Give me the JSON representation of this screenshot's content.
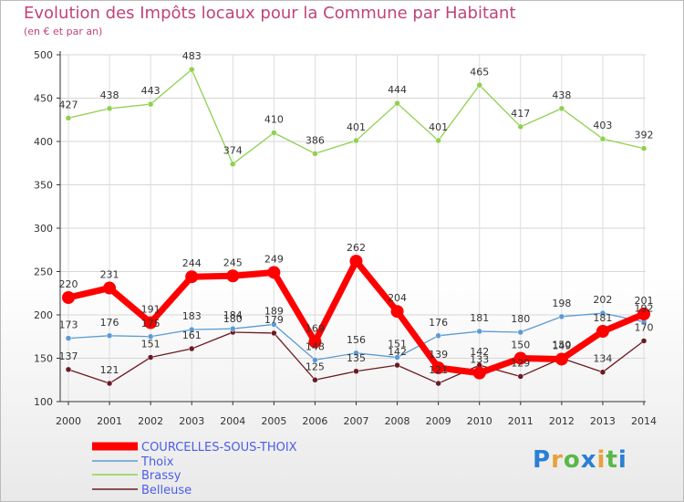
{
  "title": "Evolution des Impôts locaux pour la Commune par Habitant",
  "subtitle": "(en € et par an)",
  "logo_text": "Proxiti",
  "chart_data": {
    "type": "line",
    "title": "Evolution des Impôts locaux pour la Commune par Habitant",
    "subtitle": "(en € et par an)",
    "xlabel": "",
    "ylabel": "",
    "ylim": [
      100,
      500
    ],
    "yticks": [
      100,
      150,
      200,
      250,
      300,
      350,
      400,
      450,
      500
    ],
    "categories": [
      "2000",
      "2001",
      "2002",
      "2003",
      "2004",
      "2005",
      "2006",
      "2007",
      "2008",
      "2009",
      "2010",
      "2011",
      "2012",
      "2013",
      "2014"
    ],
    "legend_position": "bottom-left",
    "series": [
      {
        "name": "COURCELLES-SOUS-THOIX",
        "color": "#ff0000",
        "legend_color": "#4b5de6",
        "values": [
          220,
          231,
          191,
          244,
          245,
          249,
          169,
          262,
          204,
          139,
          133,
          150,
          149,
          181,
          201
        ],
        "labels": [
          "220",
          "231",
          "191",
          "244",
          "245",
          "249",
          "169",
          "262",
          "204",
          "139",
          "133",
          "150",
          "149",
          "181",
          "201"
        ]
      },
      {
        "name": "Thoix",
        "color": "#5b9bd5",
        "legend_color": "#4b5de6",
        "values": [
          173,
          176,
          175,
          183,
          184,
          189,
          148,
          156,
          151,
          176,
          181,
          180,
          198,
          202,
          192
        ],
        "labels": [
          "173",
          "176",
          "175",
          "183",
          "184",
          "189",
          "148",
          "156",
          "151",
          "176",
          "181",
          "180",
          "198",
          "202",
          "192"
        ]
      },
      {
        "name": "Brassy",
        "color": "#8fd14f",
        "legend_color": "#4b5de6",
        "values": [
          427,
          438,
          443,
          483,
          374,
          410,
          386,
          401,
          444,
          401,
          465,
          417,
          438,
          403,
          392
        ],
        "labels": [
          "427",
          "438",
          "443",
          "483",
          "374",
          "410",
          "386",
          "401",
          "444",
          "401",
          "465",
          "417",
          "438",
          "403",
          "392"
        ]
      },
      {
        "name": "Belleuse",
        "color": "#6b1a22",
        "legend_color": "#4b5de6",
        "values": [
          137,
          121,
          151,
          161,
          180,
          179,
          125,
          135,
          142,
          121,
          142,
          129,
          150,
          134,
          170
        ],
        "labels": [
          "137",
          "121",
          "151",
          "161",
          "180",
          "179",
          "125",
          "135",
          "142",
          "121",
          "142",
          "129",
          "150",
          "134",
          "170"
        ]
      }
    ]
  }
}
